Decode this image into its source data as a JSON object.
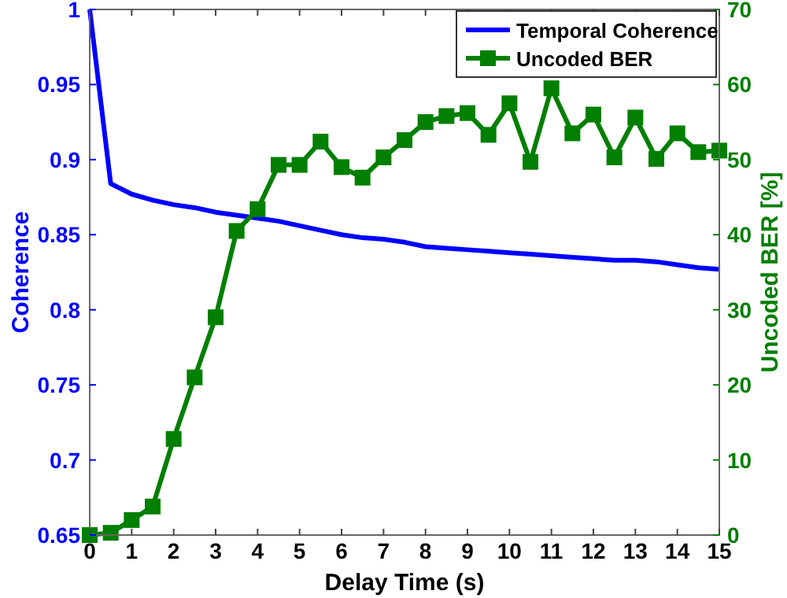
{
  "chart_data": {
    "type": "line",
    "xlabel": "Delay Time (s)",
    "ylabel": "Coherence",
    "y2label": "Uncoded BER [%]",
    "x": [
      0,
      0.5,
      1,
      1.5,
      2,
      2.5,
      3,
      3.5,
      4,
      4.5,
      5,
      5.5,
      6,
      6.5,
      7,
      7.5,
      8,
      8.5,
      9,
      9.5,
      10,
      10.5,
      11,
      11.5,
      12,
      12.5,
      13,
      13.5,
      14,
      14.5,
      15
    ],
    "series": [
      {
        "name": "Temporal Coherence",
        "color": "#0000ff",
        "marker": "none",
        "values": [
          1.0,
          0.884,
          0.877,
          0.873,
          0.87,
          0.868,
          0.865,
          0.863,
          0.861,
          0.859,
          0.856,
          0.853,
          0.85,
          0.848,
          0.847,
          0.845,
          0.842,
          0.841,
          0.84,
          0.839,
          0.838,
          0.837,
          0.836,
          0.835,
          0.834,
          0.833,
          0.833,
          0.832,
          0.83,
          0.828,
          0.827
        ]
      },
      {
        "name": "Uncoded BER",
        "color": "#007f00",
        "marker": "square",
        "axis": "y2",
        "values": [
          0,
          0.3,
          2,
          3.8,
          12.8,
          21,
          29,
          40.5,
          43.4,
          49.3,
          49.3,
          52.4,
          49,
          47.6,
          50.3,
          52.6,
          55,
          55.8,
          56.2,
          53.3,
          57.5,
          49.7,
          59.5,
          53.5,
          56,
          50.3,
          55.6,
          50.1,
          53.5,
          51,
          51.2
        ]
      }
    ],
    "xlim": [
      0,
      15
    ],
    "xticks": [
      0,
      1,
      2,
      3,
      4,
      5,
      6,
      7,
      8,
      9,
      10,
      11,
      12,
      13,
      14,
      15
    ],
    "ylim": [
      0.65,
      1
    ],
    "yticks": [
      0.65,
      0.7,
      0.75,
      0.8,
      0.85,
      0.9,
      0.95,
      1
    ],
    "y2lim": [
      0,
      70
    ],
    "y2ticks": [
      0,
      10,
      20,
      30,
      40,
      50,
      60,
      70
    ],
    "grid": false,
    "legend": "top right"
  }
}
